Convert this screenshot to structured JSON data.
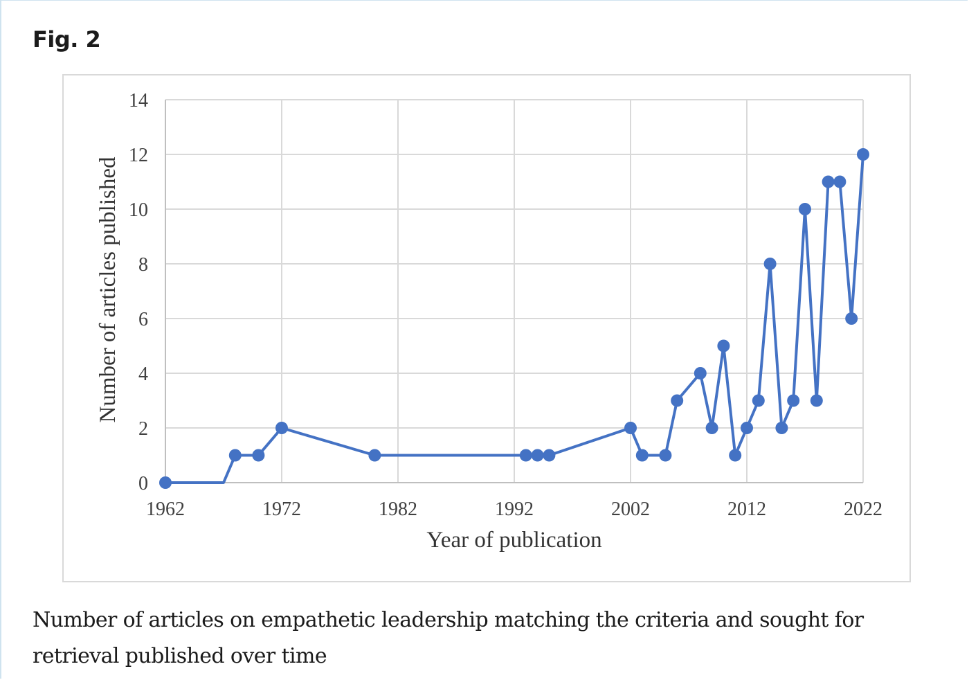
{
  "figure": {
    "label": "Fig. 2",
    "caption": "Number of articles on empathetic leadership matching the criteria and sought for retrieval published over time"
  },
  "chart_data": {
    "type": "line",
    "title": "",
    "xlabel": "Year of publication",
    "ylabel": "Number of articles published",
    "xlim": [
      1962,
      2022
    ],
    "ylim": [
      0,
      14
    ],
    "xticks": [
      1962,
      1972,
      1982,
      1992,
      2002,
      2012,
      2022
    ],
    "yticks": [
      0,
      2,
      4,
      6,
      8,
      10,
      12,
      14
    ],
    "grid": true,
    "legend": "none",
    "series": [
      {
        "color": "#4472c4",
        "markers": true,
        "points": [
          {
            "x": 1962,
            "y": 0
          },
          {
            "x": 1967,
            "y": 0,
            "marker": false
          },
          {
            "x": 1968,
            "y": 1
          },
          {
            "x": 1970,
            "y": 1
          },
          {
            "x": 1972,
            "y": 2
          },
          {
            "x": 1980,
            "y": 1
          },
          {
            "x": 1993,
            "y": 1
          },
          {
            "x": 1994,
            "y": 1
          },
          {
            "x": 1995,
            "y": 1
          },
          {
            "x": 2002,
            "y": 2
          },
          {
            "x": 2003,
            "y": 1
          },
          {
            "x": 2005,
            "y": 1
          },
          {
            "x": 2006,
            "y": 3
          },
          {
            "x": 2008,
            "y": 4
          },
          {
            "x": 2009,
            "y": 2
          },
          {
            "x": 2010,
            "y": 5
          },
          {
            "x": 2011,
            "y": 1
          },
          {
            "x": 2012,
            "y": 2
          },
          {
            "x": 2013,
            "y": 3
          },
          {
            "x": 2014,
            "y": 8
          },
          {
            "x": 2015,
            "y": 2
          },
          {
            "x": 2016,
            "y": 3
          },
          {
            "x": 2017,
            "y": 10
          },
          {
            "x": 2018,
            "y": 3
          },
          {
            "x": 2019,
            "y": 11
          },
          {
            "x": 2020,
            "y": 11
          },
          {
            "x": 2021,
            "y": 6
          },
          {
            "x": 2022,
            "y": 12
          }
        ]
      }
    ]
  }
}
